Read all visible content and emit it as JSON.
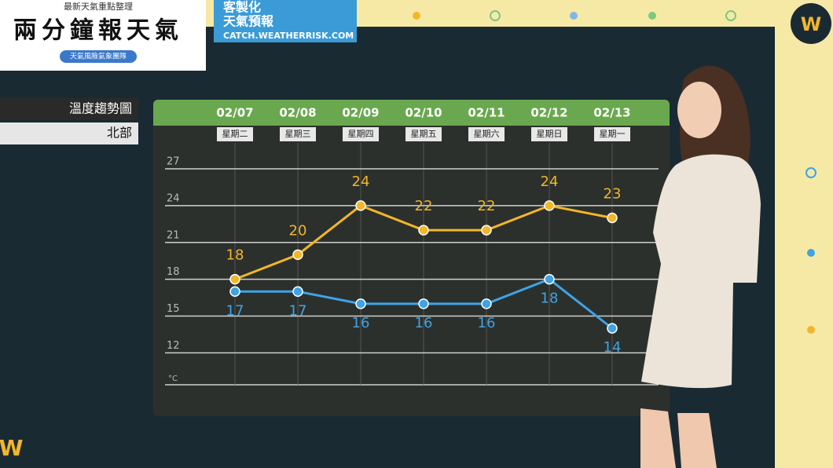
{
  "header": {
    "kicker": "最新天氣重點整理",
    "title": "兩分鐘報天氣",
    "badge": "天氣風險氣象團隊"
  },
  "promo": {
    "line1": "客製化",
    "line2": "天氣預報",
    "url": "CATCH.WEATHERRISK.COM"
  },
  "side": {
    "topic": "溫度趨勢圖",
    "region": "北部"
  },
  "chart_data": {
    "type": "line",
    "categories": [
      "02/07",
      "02/08",
      "02/09",
      "02/10",
      "02/11",
      "02/12",
      "02/13"
    ],
    "category_sublabels": [
      "星期二",
      "星期三",
      "星期四",
      "星期五",
      "星期六",
      "星期日",
      "星期一"
    ],
    "series": [
      {
        "color": "#f2b62a",
        "values": [
          18,
          20,
          24,
          22,
          22,
          24,
          23
        ]
      },
      {
        "color": "#3fa3e6",
        "values": [
          17,
          17,
          16,
          16,
          16,
          18,
          14
        ]
      }
    ],
    "y_unit": "°C",
    "ylim": [
      9.4,
      28.6
    ],
    "yticks": [
      12,
      15,
      18,
      21,
      24,
      27
    ],
    "grid": true
  }
}
